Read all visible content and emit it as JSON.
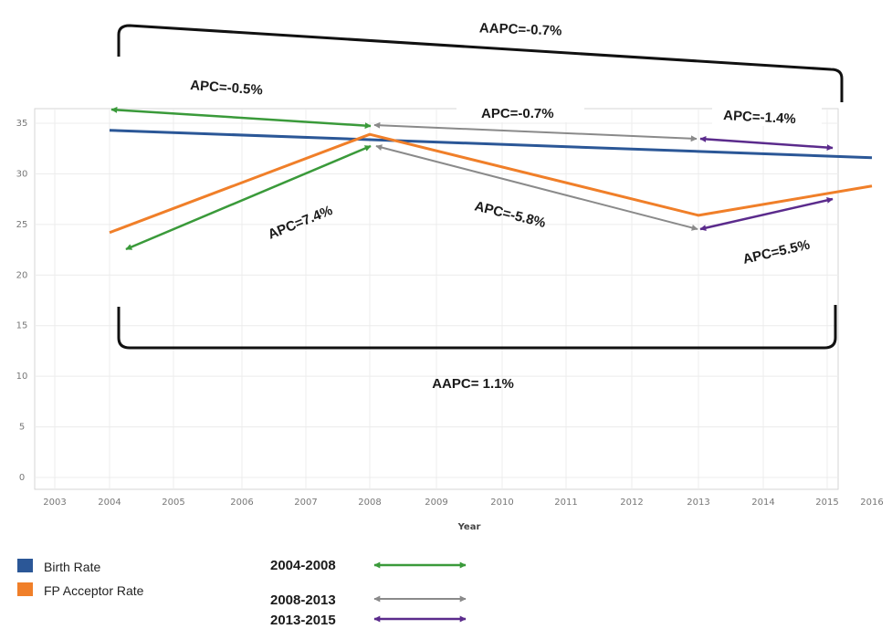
{
  "chart_data": {
    "type": "line",
    "xlabel": "Year",
    "ylabel": "",
    "x_tick_labels": [
      "2003",
      "2004",
      "2005",
      "2006",
      "2007",
      "2008",
      "2009",
      "2010",
      "2011",
      "2012",
      "2013",
      "2014",
      "2015",
      "2016"
    ],
    "ylim": [
      0,
      35
    ],
    "y_ticks": [
      0,
      5,
      10,
      15,
      20,
      25,
      30,
      35
    ],
    "grid": true,
    "series": [
      {
        "name": "Birth Rate",
        "color": "#2b5797",
        "x": [
          2004,
          2016
        ],
        "y": [
          34.3,
          31.6
        ]
      },
      {
        "name": "FP Acceptor Rate",
        "color": "#f07f29",
        "x": [
          2004,
          2008,
          2013,
          2016
        ],
        "y": [
          24.2,
          33.9,
          25.9,
          28.8
        ]
      }
    ],
    "annotations": {
      "aapc_top": "AAPC=-0.7%",
      "aapc_bottom": "AAPC= 1.1%",
      "apc": [
        "APC=-0.5%",
        "APC=-0.7%",
        "APC=-1.4%",
        "APC=7.4%",
        "APC=-5.8%",
        "APC=5.5%"
      ]
    },
    "periods": [
      {
        "label": "2004-2008",
        "color": "#3a9a3a"
      },
      {
        "label": "2008-2013",
        "color": "#8a8a8a"
      },
      {
        "label": "2013-2015",
        "color": "#5b2b8c"
      }
    ],
    "legend_position": "bottom-left"
  }
}
